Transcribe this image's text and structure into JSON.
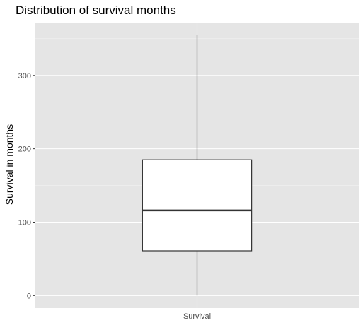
{
  "chart_data": {
    "type": "boxplot",
    "title": "Distribution of survival months",
    "xlabel": "",
    "ylabel": "Survival in months",
    "categories": [
      "Survival"
    ],
    "boxes": [
      {
        "category": "Survival",
        "whisker_low": 0,
        "q1": 61,
        "median": 116,
        "q3": 185,
        "whisker_high": 355
      }
    ],
    "y_ticks": [
      0,
      100,
      200,
      300
    ],
    "y_tick_labels": [
      "0",
      "100",
      "200",
      "300"
    ],
    "ylim": [
      -17,
      372
    ],
    "grid": true,
    "legend": "none",
    "colors": {
      "panel_background": "#e5e5e5",
      "grid_major": "#ffffff",
      "grid_minor": "#f2f2f2",
      "box_fill": "#ffffff",
      "box_stroke": "#333333",
      "tick_label": "#4d4d4d",
      "tick_mark": "#333333"
    }
  }
}
